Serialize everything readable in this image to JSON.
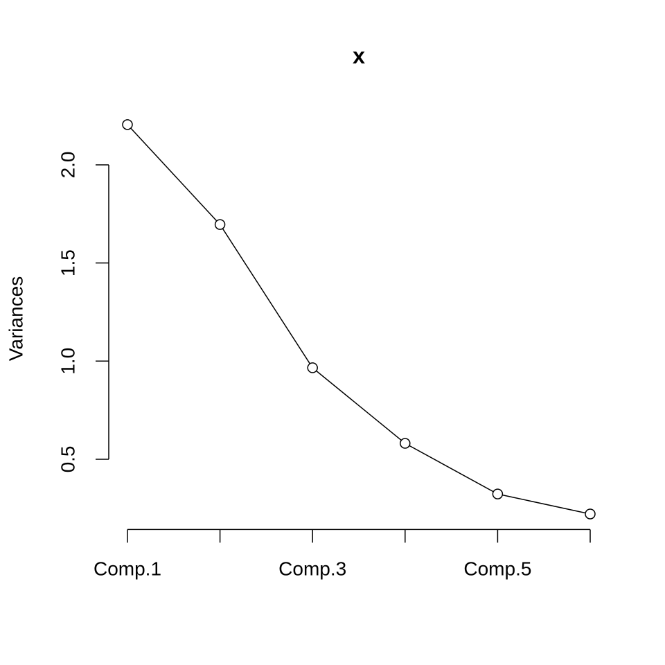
{
  "chart_data": {
    "type": "line",
    "title": "x",
    "y_label": "Variances",
    "categories": [
      "Comp.1",
      null,
      "Comp.3",
      null,
      "Comp.5",
      null
    ],
    "values": [
      2.205,
      1.696,
      0.966,
      0.581,
      0.323,
      0.221
    ],
    "color": "#000000",
    "ylim": [
      0.142,
      2.284
    ],
    "yticks": [
      0.5,
      {
        "value": 1,
        "label": "1.0"
      },
      1.5,
      {
        "value": 2,
        "label": "2.0"
      }
    ]
  }
}
